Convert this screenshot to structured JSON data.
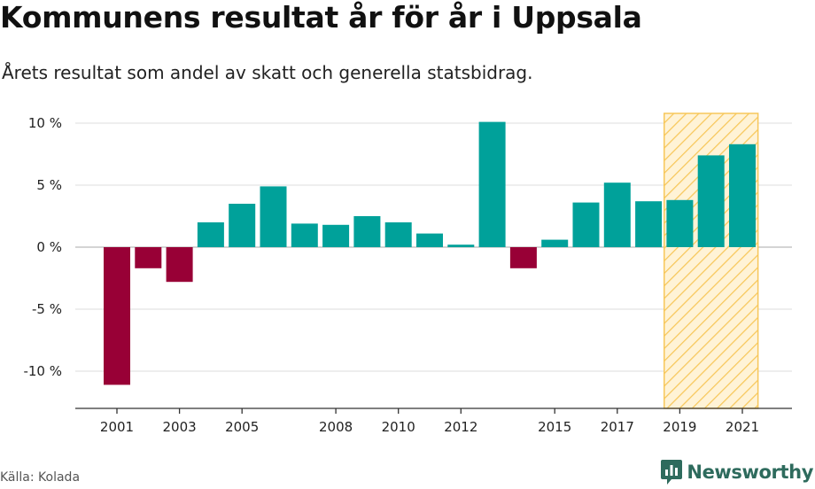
{
  "title": "Kommunens resultat år för år i Uppsala",
  "subtitle": "Årets resultat som andel av skatt och generella statsbidrag.",
  "source": "Källa: Kolada",
  "brand": {
    "name": "Newsworthy",
    "icon": "newsworthy-logo-icon"
  },
  "colors": {
    "positive": "#00a19a",
    "negative": "#980036",
    "highlight_fill": "#fff3d6",
    "highlight_stroke": "#f7c75a",
    "grid": "#dddddd",
    "axis": "#333333"
  },
  "chart_data": {
    "type": "bar",
    "xlabel": "",
    "ylabel": "",
    "ylim": [
      -13,
      11.5
    ],
    "yticks": [
      10,
      5,
      0,
      -5,
      -10
    ],
    "ytick_labels": [
      "10 %",
      "5 %",
      "0 %",
      "-5 %",
      "-10 %"
    ],
    "xtick_labels": [
      "2001",
      "2003",
      "2005",
      "2008",
      "2010",
      "2012",
      "2015",
      "2017",
      "2019",
      "2021"
    ],
    "highlight_range": [
      "2019",
      "2021"
    ],
    "grid": true,
    "categories": [
      "2001",
      "2002",
      "2003",
      "2004",
      "2005",
      "2006",
      "2007",
      "2008",
      "2009",
      "2010",
      "2011",
      "2012",
      "2013",
      "2014",
      "2015",
      "2016",
      "2017",
      "2018",
      "2019",
      "2020",
      "2021"
    ],
    "values": [
      -11.1,
      -1.7,
      -2.8,
      2.0,
      3.5,
      4.9,
      1.9,
      1.8,
      2.5,
      2.0,
      1.1,
      0.2,
      10.1,
      -1.7,
      0.6,
      3.6,
      5.2,
      3.7,
      3.8,
      7.4,
      8.3
    ]
  }
}
